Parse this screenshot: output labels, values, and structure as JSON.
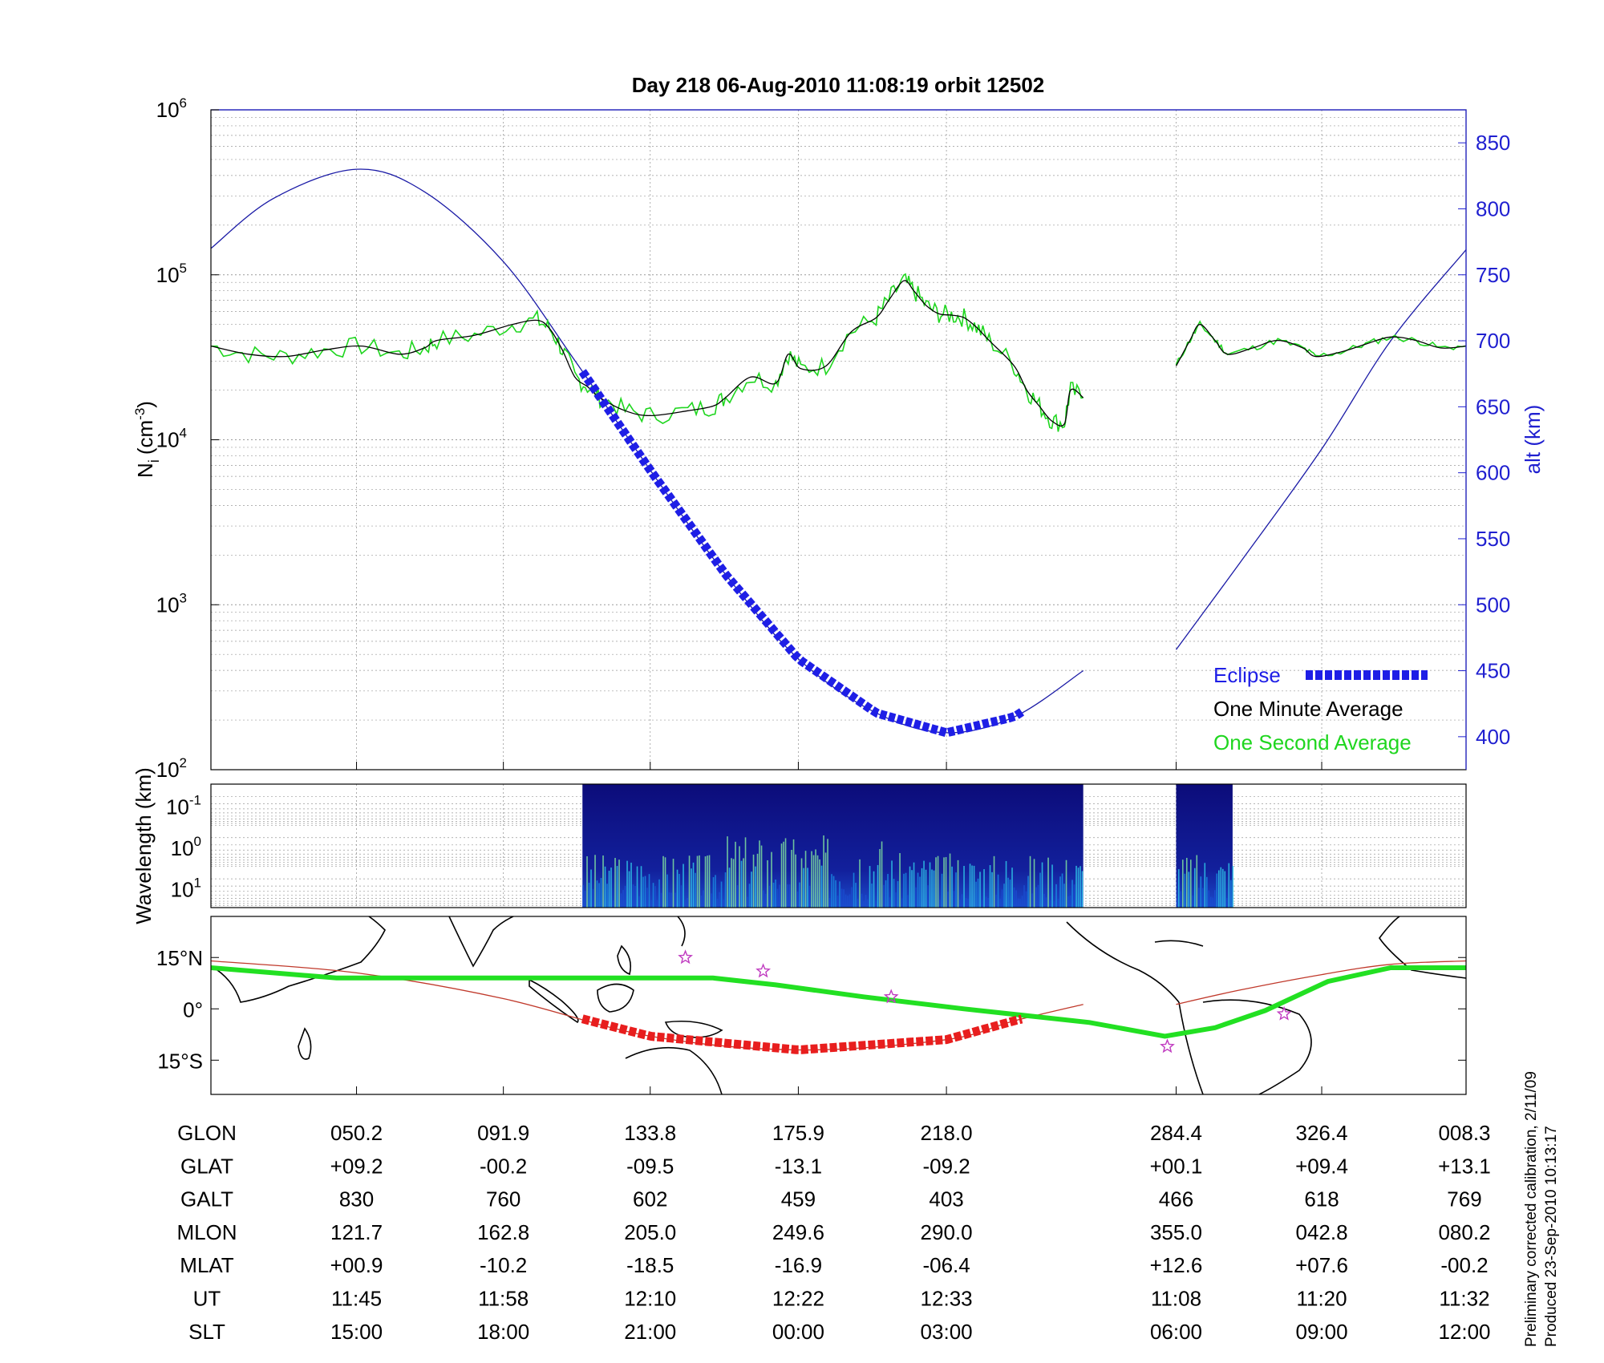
{
  "title": "Day 218  06-Aug-2010 11:08:19   orbit 12502",
  "colors": {
    "altitude": "#1a1aa6",
    "one_minute": "#000000",
    "one_second": "#1fd61f",
    "eclipse": "#1e1ee6",
    "eclipse_map": "#e81e1e",
    "track_green": "#22e022",
    "magnetic": "#c0392b",
    "right_axis": "#1f1fd0",
    "star": "#c03bc0"
  },
  "chart_data": [
    {
      "type": "line",
      "panel": "density-altitude",
      "ylabel": "N",
      "ylabel_sub": "i",
      "ylabel_unit": "(cm",
      "ylabel_sup": "-3",
      "ylabel_close": ")",
      "ylabel_right": "alt (km)",
      "y_scale": "log",
      "ylim": [
        100,
        1000000
      ],
      "y_ticks": [
        {
          "value": 100,
          "base": "10",
          "exp": "2"
        },
        {
          "value": 1000,
          "base": "10",
          "exp": "3"
        },
        {
          "value": 10000,
          "base": "10",
          "exp": "4"
        },
        {
          "value": 100000,
          "base": "10",
          "exp": "5"
        },
        {
          "value": 1000000,
          "base": "10",
          "exp": "6"
        }
      ],
      "y_right_ticks": [
        "400",
        "450",
        "500",
        "550",
        "600",
        "650",
        "700",
        "750",
        "800",
        "850"
      ],
      "y_right_lim": [
        375,
        875
      ],
      "x_range": [
        0,
        100
      ],
      "grid": true,
      "legend_position": "bottom-right",
      "legend": [
        {
          "name": "Eclipse",
          "color": "#1e1ee6",
          "style": "dashed-thick"
        },
        {
          "name": "One Minute Average",
          "color": "#000000"
        },
        {
          "name": "One Second Average",
          "color": "#1fd61f"
        }
      ],
      "altitude": [
        {
          "x": 0,
          "y": 770
        },
        {
          "x": 5,
          "y": 808
        },
        {
          "x": 11.6,
          "y": 830
        },
        {
          "x": 17,
          "y": 813
        },
        {
          "x": 23.3,
          "y": 760
        },
        {
          "x": 29,
          "y": 685
        },
        {
          "x": 35,
          "y": 602
        },
        {
          "x": 41,
          "y": 523
        },
        {
          "x": 46.8,
          "y": 459
        },
        {
          "x": 53,
          "y": 418
        },
        {
          "x": 58.6,
          "y": 403
        },
        {
          "x": 64,
          "y": 415
        },
        {
          "x": 69.5,
          "y": 450
        },
        {
          "x": 76.9,
          "y": 466
        },
        {
          "x": 82,
          "y": 532
        },
        {
          "x": 88.5,
          "y": 618
        },
        {
          "x": 94,
          "y": 700
        },
        {
          "x": 100,
          "y": 769
        }
      ],
      "density": [
        {
          "x": 0,
          "y": 37000
        },
        {
          "x": 3,
          "y": 33000
        },
        {
          "x": 6,
          "y": 32000
        },
        {
          "x": 9,
          "y": 35000
        },
        {
          "x": 12,
          "y": 37000
        },
        {
          "x": 15,
          "y": 33000
        },
        {
          "x": 17,
          "y": 36000
        },
        {
          "x": 18,
          "y": 40000
        },
        {
          "x": 21,
          "y": 43000
        },
        {
          "x": 24,
          "y": 50000
        },
        {
          "x": 26,
          "y": 53000
        },
        {
          "x": 27,
          "y": 47000
        },
        {
          "x": 28,
          "y": 35000
        },
        {
          "x": 29,
          "y": 24000
        },
        {
          "x": 30,
          "y": 21000
        },
        {
          "x": 31,
          "y": 18000
        },
        {
          "x": 33,
          "y": 15000
        },
        {
          "x": 35,
          "y": 14000
        },
        {
          "x": 38,
          "y": 15000
        },
        {
          "x": 40,
          "y": 16000
        },
        {
          "x": 41,
          "y": 18000
        },
        {
          "x": 43,
          "y": 24000
        },
        {
          "x": 45,
          "y": 22000
        },
        {
          "x": 46,
          "y": 33000
        },
        {
          "x": 47,
          "y": 27000
        },
        {
          "x": 49,
          "y": 28000
        },
        {
          "x": 51,
          "y": 45000
        },
        {
          "x": 53,
          "y": 55000
        },
        {
          "x": 54,
          "y": 70000
        },
        {
          "x": 55.2,
          "y": 92000
        },
        {
          "x": 56,
          "y": 80000
        },
        {
          "x": 57,
          "y": 65000
        },
        {
          "x": 58,
          "y": 58000
        },
        {
          "x": 59,
          "y": 57000
        },
        {
          "x": 60,
          "y": 55000
        },
        {
          "x": 61,
          "y": 48000
        },
        {
          "x": 62,
          "y": 40000
        },
        {
          "x": 64,
          "y": 28000
        },
        {
          "x": 65,
          "y": 20000
        },
        {
          "x": 66,
          "y": 16000
        },
        {
          "x": 67,
          "y": 13000
        },
        {
          "x": 68,
          "y": 12500
        },
        {
          "x": 68.5,
          "y": 20000
        },
        {
          "x": 69.5,
          "y": 18000
        }
      ],
      "density_seg2": [
        {
          "x": 76.9,
          "y": 28000
        },
        {
          "x": 78,
          "y": 40000
        },
        {
          "x": 78.8,
          "y": 50000
        },
        {
          "x": 80,
          "y": 40000
        },
        {
          "x": 81,
          "y": 33000
        },
        {
          "x": 83,
          "y": 36000
        },
        {
          "x": 85,
          "y": 40000
        },
        {
          "x": 87,
          "y": 36000
        },
        {
          "x": 88,
          "y": 32000
        },
        {
          "x": 90,
          "y": 34000
        },
        {
          "x": 92,
          "y": 38000
        },
        {
          "x": 94,
          "y": 42000
        },
        {
          "x": 96,
          "y": 40000
        },
        {
          "x": 98,
          "y": 36000
        },
        {
          "x": 100,
          "y": 37000
        }
      ],
      "eclipse_range": [
        29.6,
        64.9
      ]
    },
    {
      "type": "heatmap",
      "panel": "spectrogram",
      "ylabel": "Wavelength (km)",
      "y_scale": "log",
      "y_ticks": [
        {
          "base": "10",
          "exp": "-1"
        },
        {
          "base": "10",
          "exp": "0"
        },
        {
          "base": "10",
          "exp": "1"
        }
      ],
      "data_segments": [
        [
          29.6,
          69.5
        ],
        [
          76.9,
          81.4
        ]
      ]
    },
    {
      "type": "map",
      "panel": "ground-track",
      "y_ticks": [
        "15°N",
        "0°",
        "15°S"
      ],
      "ylim": [
        -25,
        27
      ],
      "track": [
        {
          "x": 0,
          "y": 12
        },
        {
          "x": 10,
          "y": 9
        },
        {
          "x": 20,
          "y": 9
        },
        {
          "x": 30,
          "y": 9
        },
        {
          "x": 40,
          "y": 9
        },
        {
          "x": 45,
          "y": 7
        },
        {
          "x": 52,
          "y": 3.5
        },
        {
          "x": 60,
          "y": 0
        },
        {
          "x": 70,
          "y": -4
        },
        {
          "x": 76,
          "y": -8
        },
        {
          "x": 80,
          "y": -5.5
        },
        {
          "x": 84,
          "y": -0.5
        },
        {
          "x": 89,
          "y": 8
        },
        {
          "x": 94,
          "y": 12
        },
        {
          "x": 100,
          "y": 12
        }
      ],
      "magnetic": [
        {
          "x": 0,
          "y": 14
        },
        {
          "x": 11.6,
          "y": 10.5
        },
        {
          "x": 23.3,
          "y": 3
        },
        {
          "x": 35,
          "y": -8
        },
        {
          "x": 46.8,
          "y": -12
        },
        {
          "x": 58.6,
          "y": -9
        },
        {
          "x": 64,
          "y": -3.5
        },
        {
          "x": 69.5,
          "y": 1.3
        }
      ],
      "magnetic_seg2": [
        {
          "x": 76.9,
          "y": 1.3
        },
        {
          "x": 82,
          "y": 5.5
        },
        {
          "x": 88.5,
          "y": 10
        },
        {
          "x": 94,
          "y": 13
        },
        {
          "x": 100,
          "y": 14
        }
      ],
      "stars": [
        {
          "x": 37.8,
          "y": 15
        },
        {
          "x": 44,
          "y": 11
        },
        {
          "x": 54.2,
          "y": 3.5
        },
        {
          "x": 76.2,
          "y": -11
        },
        {
          "x": 85.5,
          "y": -1.5
        }
      ]
    }
  ],
  "table": {
    "row_labels": [
      "GLON",
      "GLAT",
      "GALT",
      "MLON",
      "MLAT",
      "UT",
      "SLT"
    ],
    "columns": [
      {
        "x": 11.6,
        "values": [
          "050.2",
          "+09.2",
          "830",
          "121.7",
          "+00.9",
          "11:45",
          "15:00"
        ]
      },
      {
        "x": 23.3,
        "values": [
          "091.9",
          "-00.2",
          "760",
          "162.8",
          "-10.2",
          "11:58",
          "18:00"
        ]
      },
      {
        "x": 35.0,
        "values": [
          "133.8",
          "-09.5",
          "602",
          "205.0",
          "-18.5",
          "12:10",
          "21:00"
        ]
      },
      {
        "x": 46.8,
        "values": [
          "175.9",
          "-13.1",
          "459",
          "249.6",
          "-16.9",
          "12:22",
          "00:00"
        ]
      },
      {
        "x": 58.6,
        "values": [
          "218.0",
          "-09.2",
          "403",
          "290.0",
          "-06.4",
          "12:33",
          "03:00"
        ]
      },
      {
        "x": 76.9,
        "values": [
          "284.4",
          "+00.1",
          "466",
          "355.0",
          "+12.6",
          "11:08",
          "06:00"
        ]
      },
      {
        "x": 88.5,
        "values": [
          "326.4",
          "+09.4",
          "618",
          "042.8",
          "+07.6",
          "11:20",
          "09:00"
        ]
      },
      {
        "x": 100.0,
        "values": [
          "008.3",
          "+13.1",
          "769",
          "080.2",
          "-00.2",
          "11:32",
          "12:00"
        ]
      }
    ]
  },
  "footnote": {
    "line1": "Preliminary corrected calibration, 2/11/09",
    "line2": "Produced 23-Sep-2010 10:13:17"
  }
}
